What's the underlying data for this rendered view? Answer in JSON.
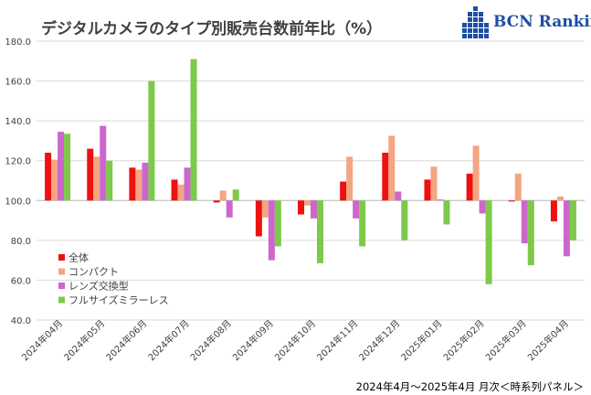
{
  "header": {
    "title": "デジタルカメラのタイプ別販売台数前年比（%）",
    "logo_text": "BCN Ranking"
  },
  "footnote": "2024年4月～2025年4月 月次＜時系列パネル＞",
  "colors": {
    "全体": "#ee1111",
    "コンパクト": "#f4a582",
    "レンズ交換型": "#cc66cc",
    "フルサイズミラーレス": "#7dc94a",
    "logo": "#1f4ea1",
    "grid": "#d9d9d9"
  },
  "chart_data": {
    "type": "bar",
    "title": "デジタルカメラのタイプ別販売台数前年比（%）",
    "categories": [
      "2024年04月",
      "2024年05月",
      "2024年06月",
      "2024年07月",
      "2024年08月",
      "2024年09月",
      "2024年10月",
      "2024年11月",
      "2024年12月",
      "2025年01月",
      "2025年02月",
      "2025年03月",
      "2025年04月"
    ],
    "series": [
      {
        "name": "全体",
        "values": [
          124.0,
          126.0,
          116.5,
          110.5,
          99.0,
          82.0,
          93.0,
          109.5,
          124.0,
          110.5,
          113.5,
          99.5,
          89.5
        ]
      },
      {
        "name": "コンパクト",
        "values": [
          120.5,
          122.0,
          115.5,
          108.0,
          105.0,
          91.5,
          97.5,
          122.0,
          132.5,
          117.0,
          127.5,
          113.5,
          102.0
        ]
      },
      {
        "name": "レンズ交換型",
        "values": [
          134.5,
          137.5,
          119.0,
          116.5,
          91.5,
          70.0,
          91.0,
          91.0,
          104.5,
          100.5,
          93.5,
          78.5,
          72.0
        ]
      },
      {
        "name": "フルサイズミラーレス",
        "values": [
          133.5,
          120.0,
          160.0,
          171.0,
          105.5,
          77.0,
          68.5,
          77.0,
          80.0,
          88.0,
          58.0,
          67.5,
          80.0
        ]
      }
    ],
    "ylim": [
      40,
      180
    ],
    "yticks": [
      "40.0",
      "60.0",
      "80.0",
      "100.0",
      "120.0",
      "140.0",
      "160.0",
      "180.0"
    ],
    "baseline": 100,
    "grid": true,
    "legend_position": "bottom-left"
  }
}
